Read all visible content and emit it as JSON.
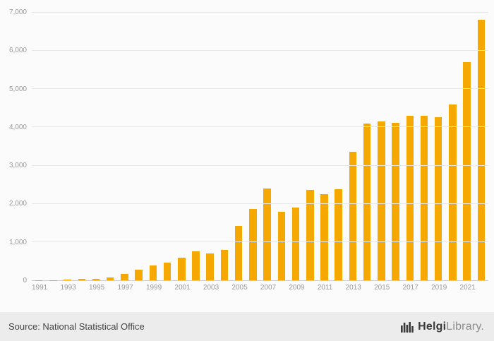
{
  "chart_data": {
    "type": "bar",
    "title": "",
    "xlabel": "",
    "ylabel": "",
    "x": [
      1991,
      1992,
      1993,
      1994,
      1995,
      1996,
      1997,
      1998,
      1999,
      2000,
      2001,
      2002,
      2003,
      2004,
      2005,
      2006,
      2007,
      2008,
      2009,
      2010,
      2011,
      2012,
      2013,
      2014,
      2015,
      2016,
      2017,
      2018,
      2019,
      2020,
      2021,
      2022
    ],
    "values": [
      2,
      5,
      20,
      30,
      45,
      80,
      160,
      280,
      390,
      470,
      600,
      760,
      700,
      800,
      1420,
      1870,
      2400,
      1800,
      1910,
      2360,
      2260,
      2390,
      3370,
      4100,
      4160,
      4110,
      4310,
      4310,
      4260,
      4600,
      5700,
      6820
    ],
    "ylim": [
      0,
      7000
    ],
    "ytick_step": 1000,
    "ytick_labels": [
      "0",
      "1,000",
      "2,000",
      "3,000",
      "4,000",
      "5,000",
      "6,000",
      "7,000"
    ],
    "xtick_labels": [
      "1991",
      "1993",
      "1995",
      "1997",
      "1999",
      "2001",
      "2003",
      "2005",
      "2007",
      "2009",
      "2011",
      "2013",
      "2015",
      "2017",
      "2019",
      "2021"
    ],
    "bar_color": "#F5A800",
    "grid": true,
    "legend": "none"
  },
  "footer": {
    "source": "Source: National Statistical Office",
    "logo_primary": "Helgi",
    "logo_secondary": "Library",
    "logo_suffix": "."
  }
}
